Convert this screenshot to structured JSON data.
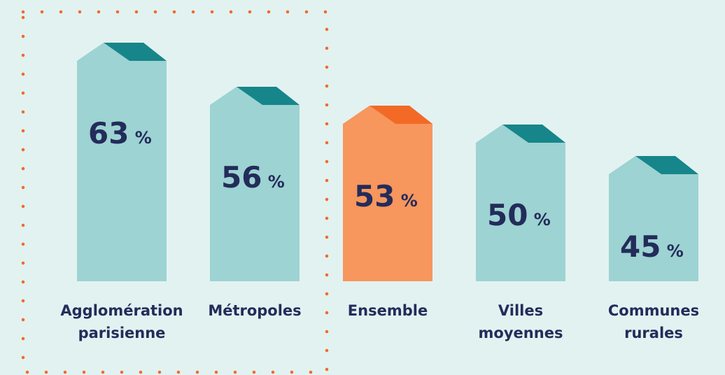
{
  "chart_data": {
    "type": "bar",
    "categories": [
      "Agglomération parisienne",
      "Métropoles",
      "Ensemble",
      "Villes moyennes",
      "Communes rurales"
    ],
    "values": [
      63,
      56,
      53,
      50,
      45
    ],
    "value_labels": [
      "63 %",
      "56 %",
      "53 %",
      "50 %",
      "45 %"
    ],
    "colors": [
      "#9dd3d2",
      "#9dd3d2",
      "#f7965d",
      "#9dd3d2",
      "#9dd3d2"
    ],
    "roof_colors": [
      "#16868a",
      "#16868a",
      "#f26a26",
      "#16868a",
      "#16868a"
    ]
  }
}
